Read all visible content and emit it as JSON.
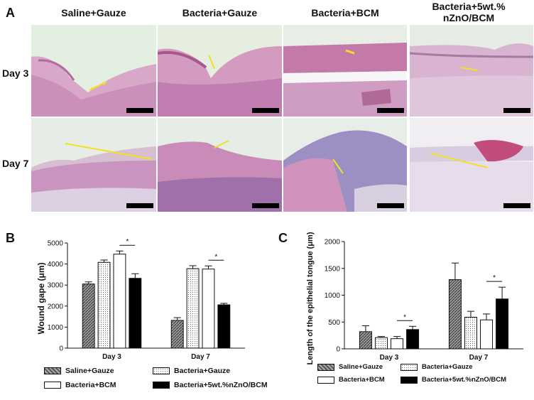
{
  "panels": {
    "a": "A",
    "b": "B",
    "c": "C"
  },
  "micrographs": {
    "columns": [
      "Saline+Gauze",
      "Bacteria+Gauze",
      "Bacteria+BCM",
      "Bacteria+5wt.% nZnO/BCM"
    ],
    "rows": [
      "Day 3",
      "Day 7"
    ]
  },
  "legend": {
    "saline_gauze": "Saline+Gauze",
    "bacteria_gauze": "Bacteria+Gauze",
    "bacteria_bcm": "Bacteria+BCM",
    "bacteria_nzno": "Bacteria+5wt.%nZnO/BCM"
  },
  "colors": {
    "saline": "#777777",
    "gauze": "#f0f0f0",
    "bcm": "#ffffff",
    "nzno": "#000000",
    "arrow": "#f2e024"
  },
  "chart_data": [
    {
      "type": "bar",
      "panel": "B",
      "ylabel": "Wound gape (μm)",
      "ylim": [
        0,
        5000
      ],
      "yticks": [
        0,
        1000,
        2000,
        3000,
        4000,
        5000
      ],
      "categories": [
        "Day 3",
        "Day 7"
      ],
      "series": [
        {
          "name": "Saline+Gauze",
          "values": [
            3050,
            1320
          ],
          "errors": [
            100,
            130
          ]
        },
        {
          "name": "Bacteria+Gauze",
          "values": [
            4080,
            3780
          ],
          "errors": [
            110,
            140
          ]
        },
        {
          "name": "Bacteria+BCM",
          "values": [
            4470,
            3760
          ],
          "errors": [
            150,
            150
          ]
        },
        {
          "name": "Bacteria+5wt.%nZnO/BCM",
          "values": [
            3320,
            2060
          ],
          "errors": [
            220,
            70
          ]
        }
      ],
      "significance": [
        "*",
        "*"
      ]
    },
    {
      "type": "bar",
      "panel": "C",
      "ylabel": "Length of the epithelial tongue (μm)",
      "ylim": [
        0,
        2000
      ],
      "yticks": [
        0,
        500,
        1000,
        1500,
        2000
      ],
      "categories": [
        "Day 3",
        "Day 7"
      ],
      "series": [
        {
          "name": "Saline+Gauze",
          "values": [
            320,
            1290
          ],
          "errors": [
            110,
            310
          ]
        },
        {
          "name": "Bacteria+Gauze",
          "values": [
            210,
            590
          ],
          "errors": [
            20,
            110
          ]
        },
        {
          "name": "Bacteria+BCM",
          "values": [
            190,
            540
          ],
          "errors": [
            40,
            110
          ]
        },
        {
          "name": "Bacteria+5wt.%nZnO/BCM",
          "values": [
            360,
            930
          ],
          "errors": [
            60,
            220
          ]
        }
      ],
      "significance": [
        "*",
        "*"
      ]
    }
  ]
}
